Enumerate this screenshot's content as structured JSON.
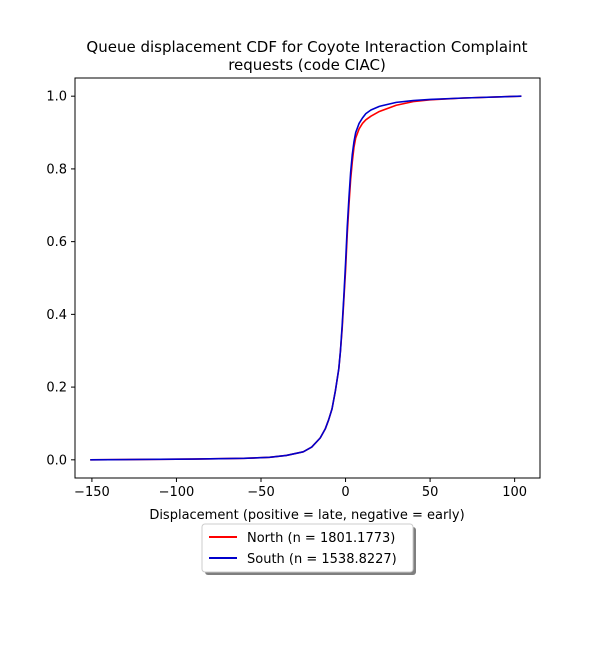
{
  "chart_data": {
    "type": "line",
    "title_line1": "Queue displacement CDF for Coyote Interaction Complaint",
    "title_line2": "requests (code CIAC)",
    "xlabel": "Displacement (positive = late, negative = early)",
    "ylabel": "",
    "xlim": [
      -160,
      115
    ],
    "ylim": [
      -0.05,
      1.05
    ],
    "xticks": [
      -150,
      -100,
      -50,
      0,
      50,
      100
    ],
    "yticks": [
      0.0,
      0.2,
      0.4,
      0.6,
      0.8,
      1.0
    ],
    "xtick_labels": [
      "−150",
      "−100",
      "−50",
      "0",
      "50",
      "100"
    ],
    "ytick_labels": [
      "0.0",
      "0.2",
      "0.4",
      "0.6",
      "0.8",
      "1.0"
    ],
    "grid": false,
    "legend_placement": "below plot, centered",
    "series": [
      {
        "name": "North (n = 1801.1773)",
        "color": "#ff0000",
        "x": [
          -151,
          -120,
          -90,
          -60,
          -45,
          -35,
          -25,
          -20,
          -15,
          -12,
          -10,
          -8,
          -6,
          -4,
          -3,
          -2,
          -1,
          0,
          1,
          2,
          3,
          4,
          5,
          6,
          8,
          10,
          12,
          15,
          20,
          30,
          40,
          50,
          70,
          104
        ],
        "y": [
          0.0,
          0.001,
          0.002,
          0.004,
          0.007,
          0.012,
          0.022,
          0.035,
          0.06,
          0.085,
          0.11,
          0.14,
          0.19,
          0.25,
          0.3,
          0.36,
          0.44,
          0.52,
          0.62,
          0.7,
          0.77,
          0.82,
          0.86,
          0.885,
          0.91,
          0.925,
          0.935,
          0.945,
          0.958,
          0.975,
          0.985,
          0.99,
          0.995,
          1.0
        ]
      },
      {
        "name": "South (n = 1538.8227)",
        "color": "#0000cc",
        "x": [
          -151,
          -120,
          -90,
          -60,
          -45,
          -35,
          -25,
          -20,
          -15,
          -12,
          -10,
          -8,
          -6,
          -4,
          -3,
          -2,
          -1,
          0,
          1,
          2,
          3,
          4,
          5,
          6,
          8,
          10,
          12,
          15,
          20,
          30,
          40,
          50,
          70,
          104
        ],
        "y": [
          0.0,
          0.001,
          0.002,
          0.004,
          0.007,
          0.012,
          0.022,
          0.035,
          0.06,
          0.085,
          0.11,
          0.14,
          0.19,
          0.25,
          0.3,
          0.37,
          0.45,
          0.54,
          0.64,
          0.72,
          0.79,
          0.84,
          0.875,
          0.9,
          0.925,
          0.94,
          0.952,
          0.962,
          0.972,
          0.983,
          0.988,
          0.991,
          0.995,
          1.0
        ]
      }
    ]
  }
}
